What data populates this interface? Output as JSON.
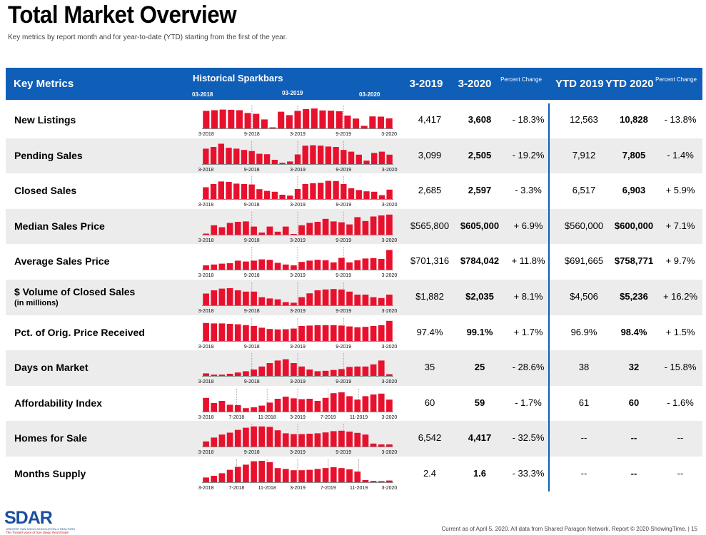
{
  "page": {
    "title": "Total Market Overview",
    "subtitle": "Key metrics by report month and for year-to-date (YTD) starting from the first of the year.",
    "footer": "Current as of April 5, 2020. All data from Shared Paragon Network. Report © 2020 ShowingTime.  |  15"
  },
  "header": {
    "key_metrics": "Key Metrics",
    "sparkbars": "Historical Sparkbars",
    "spark_dates": [
      "03-2018",
      "03-2019",
      "03-2020"
    ],
    "col_2019": "3-2019",
    "col_2020": "3-2020",
    "pct_change": "Percent Change",
    "col_ytd2019": "YTD 2019",
    "col_ytd2020": "YTD 2020",
    "pct_change_ytd": "Percent Change"
  },
  "logo": {
    "name": "SDAR",
    "line1": "GREATER SAN DIEGO ASSOCIATION of REALTORS",
    "line2": "The Trusted Voice of San Diego Real Estate"
  },
  "colors": {
    "bar": "#e8112d",
    "header": "#0f5fb8",
    "shade": "#ececec"
  },
  "chart_data": [
    {
      "type": "bar",
      "title": "New Listings",
      "ticks": [
        "3-2018",
        "9-2018",
        "3-2019",
        "9-2019",
        "3-2020"
      ],
      "values": [
        0.82,
        0.85,
        0.88,
        0.87,
        0.85,
        0.72,
        0.68,
        0.42,
        0.05,
        0.78,
        0.62,
        0.82,
        0.9,
        0.93,
        0.84,
        0.83,
        0.8,
        0.6,
        0.46,
        0.12,
        0.56,
        0.55,
        0.47
      ]
    },
    {
      "type": "bar",
      "title": "Pending Sales",
      "ticks": [
        "3-2018",
        "9-2018",
        "3-2019",
        "9-2019",
        "3-2020"
      ],
      "values": [
        0.72,
        0.8,
        0.95,
        0.76,
        0.72,
        0.66,
        0.61,
        0.48,
        0.46,
        0.2,
        0.06,
        0.12,
        0.45,
        0.86,
        0.88,
        0.86,
        0.82,
        0.8,
        0.66,
        0.58,
        0.44,
        0.16,
        0.52,
        0.58,
        0.44
      ]
    },
    {
      "type": "bar",
      "title": "Closed Sales",
      "ticks": [
        "3-2018",
        "9-2018",
        "3-2019",
        "9-2019",
        "3-2020"
      ],
      "values": [
        0.55,
        0.7,
        0.82,
        0.8,
        0.72,
        0.7,
        0.68,
        0.46,
        0.38,
        0.34,
        0.2,
        0.16,
        0.47,
        0.7,
        0.74,
        0.76,
        0.85,
        0.84,
        0.7,
        0.5,
        0.42,
        0.36,
        0.34,
        0.18,
        0.44
      ]
    },
    {
      "type": "bar",
      "title": "Median Sales Price",
      "ticks": [
        "3-2018",
        "9-2018",
        "3-2019",
        "9-2019",
        "3-2020"
      ],
      "values": [
        0.05,
        0.44,
        0.35,
        0.55,
        0.6,
        0.62,
        0.38,
        0.1,
        0.38,
        0.14,
        0.38,
        0.0,
        0.44,
        0.55,
        0.6,
        0.74,
        0.62,
        0.58,
        0.48,
        0.82,
        0.64,
        0.85,
        0.9,
        0.94
      ]
    },
    {
      "type": "bar",
      "title": "Average Sales Price",
      "ticks": [
        "3-2018",
        "9-2018",
        "3-2019",
        "9-2019",
        "3-2020"
      ],
      "values": [
        0.2,
        0.24,
        0.28,
        0.3,
        0.42,
        0.38,
        0.42,
        0.48,
        0.46,
        0.32,
        0.24,
        0.2,
        0.36,
        0.42,
        0.46,
        0.44,
        0.34,
        0.55,
        0.34,
        0.44,
        0.52,
        0.54,
        0.5,
        0.92
      ]
    },
    {
      "type": "bar",
      "title": "$ Volume of Closed Sales (in millions)",
      "ticks": [
        "3-2018",
        "9-2018",
        "3-2019",
        "9-2019",
        "3-2020"
      ],
      "values": [
        0.55,
        0.7,
        0.78,
        0.8,
        0.7,
        0.64,
        0.64,
        0.38,
        0.32,
        0.28,
        0.15,
        0.12,
        0.38,
        0.56,
        0.7,
        0.74,
        0.76,
        0.74,
        0.64,
        0.5,
        0.5,
        0.38,
        0.34,
        0.5
      ]
    },
    {
      "type": "bar",
      "title": "Pct. of Orig. Price Received",
      "ticks": [
        "3-2018",
        "9-2018",
        "3-2019",
        "9-2019",
        "3-2020"
      ],
      "values": [
        0.84,
        0.82,
        0.82,
        0.8,
        0.78,
        0.74,
        0.7,
        0.62,
        0.56,
        0.54,
        0.55,
        0.58,
        0.7,
        0.72,
        0.74,
        0.74,
        0.74,
        0.72,
        0.68,
        0.64,
        0.66,
        0.7,
        0.74,
        0.94
      ]
    },
    {
      "type": "bar",
      "title": "Days on Market",
      "ticks": [
        "3-2018",
        "9-2018",
        "3-2019",
        "9-2019",
        "3-2020"
      ],
      "values": [
        0.12,
        0.06,
        0.06,
        0.1,
        0.16,
        0.22,
        0.3,
        0.44,
        0.6,
        0.72,
        0.78,
        0.6,
        0.44,
        0.3,
        0.22,
        0.24,
        0.28,
        0.32,
        0.42,
        0.44,
        0.44,
        0.54,
        0.72,
        0.08
      ]
    },
    {
      "type": "bar",
      "title": "Affordability Index",
      "ticks": [
        "3-2018",
        "7-2018",
        "11-2018",
        "3-2019",
        "7-2019",
        "11-2019",
        "3-2020"
      ],
      "values": [
        0.64,
        0.4,
        0.5,
        0.32,
        0.3,
        0.16,
        0.2,
        0.28,
        0.42,
        0.6,
        0.7,
        0.62,
        0.58,
        0.6,
        0.5,
        0.64,
        0.86,
        0.9,
        0.72,
        0.56,
        0.72,
        0.8,
        0.84,
        0.56
      ]
    },
    {
      "type": "bar",
      "title": "Homes for Sale",
      "ticks": [
        "3-2018",
        "9-2018",
        "3-2019",
        "9-2019",
        "3-2020"
      ],
      "values": [
        0.24,
        0.42,
        0.56,
        0.65,
        0.78,
        0.88,
        0.94,
        0.94,
        0.92,
        0.76,
        0.62,
        0.58,
        0.58,
        0.6,
        0.62,
        0.66,
        0.72,
        0.74,
        0.7,
        0.64,
        0.56,
        0.14,
        0.1,
        0.1
      ]
    },
    {
      "type": "bar",
      "title": "Months Supply",
      "ticks": [
        "3-2018",
        "7-2018",
        "11-2018",
        "3-2019",
        "7-2019",
        "11-2019",
        "3-2020"
      ],
      "values": [
        0.22,
        0.3,
        0.42,
        0.58,
        0.72,
        0.82,
        0.98,
        1.0,
        0.94,
        0.66,
        0.62,
        0.56,
        0.56,
        0.58,
        0.62,
        0.66,
        0.7,
        0.66,
        0.6,
        0.5,
        0.1,
        0.06,
        0.05,
        0.08
      ]
    }
  ],
  "rows": [
    {
      "metric": "New Listings",
      "sub": "",
      "v2019": "4,417",
      "v2020": "3,608",
      "pct": "- 18.3%",
      "ytd2019": "12,563",
      "ytd2020": "10,828",
      "ytdpct": "- 13.8%"
    },
    {
      "metric": "Pending Sales",
      "sub": "",
      "v2019": "3,099",
      "v2020": "2,505",
      "pct": "- 19.2%",
      "ytd2019": "7,912",
      "ytd2020": "7,805",
      "ytdpct": "- 1.4%"
    },
    {
      "metric": "Closed Sales",
      "sub": "",
      "v2019": "2,685",
      "v2020": "2,597",
      "pct": "- 3.3%",
      "ytd2019": "6,517",
      "ytd2020": "6,903",
      "ytdpct": "+ 5.9%"
    },
    {
      "metric": "Median Sales Price",
      "sub": "",
      "v2019": "$565,800",
      "v2020": "$605,000",
      "pct": "+ 6.9%",
      "ytd2019": "$560,000",
      "ytd2020": "$600,000",
      "ytdpct": "+ 7.1%"
    },
    {
      "metric": "Average Sales Price",
      "sub": "",
      "v2019": "$701,316",
      "v2020": "$784,042",
      "pct": "+ 11.8%",
      "ytd2019": "$691,665",
      "ytd2020": "$758,771",
      "ytdpct": "+ 9.7%"
    },
    {
      "metric": "$ Volume of Closed Sales",
      "sub": "(in millions)",
      "v2019": "$1,882",
      "v2020": "$2,035",
      "pct": "+ 8.1%",
      "ytd2019": "$4,506",
      "ytd2020": "$5,236",
      "ytdpct": "+ 16.2%"
    },
    {
      "metric": "Pct. of Orig. Price Received",
      "sub": "",
      "v2019": "97.4%",
      "v2020": "99.1%",
      "pct": "+ 1.7%",
      "ytd2019": "96.9%",
      "ytd2020": "98.4%",
      "ytdpct": "+ 1.5%"
    },
    {
      "metric": "Days on Market",
      "sub": "",
      "v2019": "35",
      "v2020": "25",
      "pct": "- 28.6%",
      "ytd2019": "38",
      "ytd2020": "32",
      "ytdpct": "- 15.8%"
    },
    {
      "metric": "Affordability Index",
      "sub": "",
      "v2019": "60",
      "v2020": "59",
      "pct": "- 1.7%",
      "ytd2019": "61",
      "ytd2020": "60",
      "ytdpct": "- 1.6%"
    },
    {
      "metric": "Homes for Sale",
      "sub": "",
      "v2019": "6,542",
      "v2020": "4,417",
      "pct": "- 32.5%",
      "ytd2019": "--",
      "ytd2020": "--",
      "ytdpct": "--"
    },
    {
      "metric": "Months Supply",
      "sub": "",
      "v2019": "2.4",
      "v2020": "1.6",
      "pct": "- 33.3%",
      "ytd2019": "--",
      "ytd2020": "--",
      "ytdpct": "--"
    }
  ]
}
